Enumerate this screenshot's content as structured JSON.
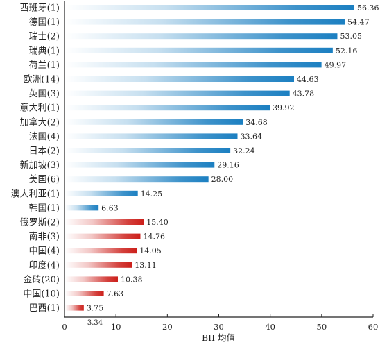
{
  "chart_data": {
    "type": "bar",
    "orientation": "horizontal",
    "xlabel": "BII 均值",
    "xlim": [
      0,
      60
    ],
    "xticks": [
      0,
      10,
      20,
      30,
      40,
      50,
      60
    ],
    "grid": false,
    "colors": {
      "blue": "#1b7fc1",
      "red": "#cc1f1a"
    },
    "categories": [
      "西班牙(1)",
      "德国(1)",
      "瑞士(2)",
      "瑞典(1)",
      "荷兰(1)",
      "欧洲(14)",
      "英国(3)",
      "意大利(1)",
      "加拿大(2)",
      "法国(4)",
      "日本(2)",
      "新加坡(3)",
      "美国(6)",
      "澳大利亚(1)",
      "韩国(1)",
      "俄罗斯(2)",
      "南非(3)",
      "中国(4)",
      "印度(4)",
      "金砖(20)",
      "中国(10)",
      "巴西(1)"
    ],
    "values": [
      56.36,
      54.47,
      53.05,
      52.16,
      49.97,
      44.63,
      43.78,
      39.92,
      34.68,
      33.64,
      32.24,
      29.16,
      28.0,
      14.25,
      6.63,
      15.4,
      14.76,
      14.05,
      13.11,
      10.38,
      7.63,
      3.75
    ],
    "value_labels": [
      "56.36",
      "54.47",
      "53.05",
      "52.16",
      "49.97",
      "44.63",
      "43.78",
      "39.92",
      "34.68",
      "33.64",
      "32.24",
      "29.16",
      "28.00",
      "14.25",
      "6.63",
      "15.40",
      "14.76",
      "14.05",
      "13.11",
      "10.38",
      "7.63",
      "3.75"
    ],
    "bar_colors": [
      "blue",
      "blue",
      "blue",
      "blue",
      "blue",
      "blue",
      "blue",
      "blue",
      "blue",
      "blue",
      "blue",
      "blue",
      "blue",
      "blue",
      "blue",
      "red",
      "red",
      "red",
      "red",
      "red",
      "red",
      "red"
    ],
    "extra_annotation": "3.34"
  }
}
